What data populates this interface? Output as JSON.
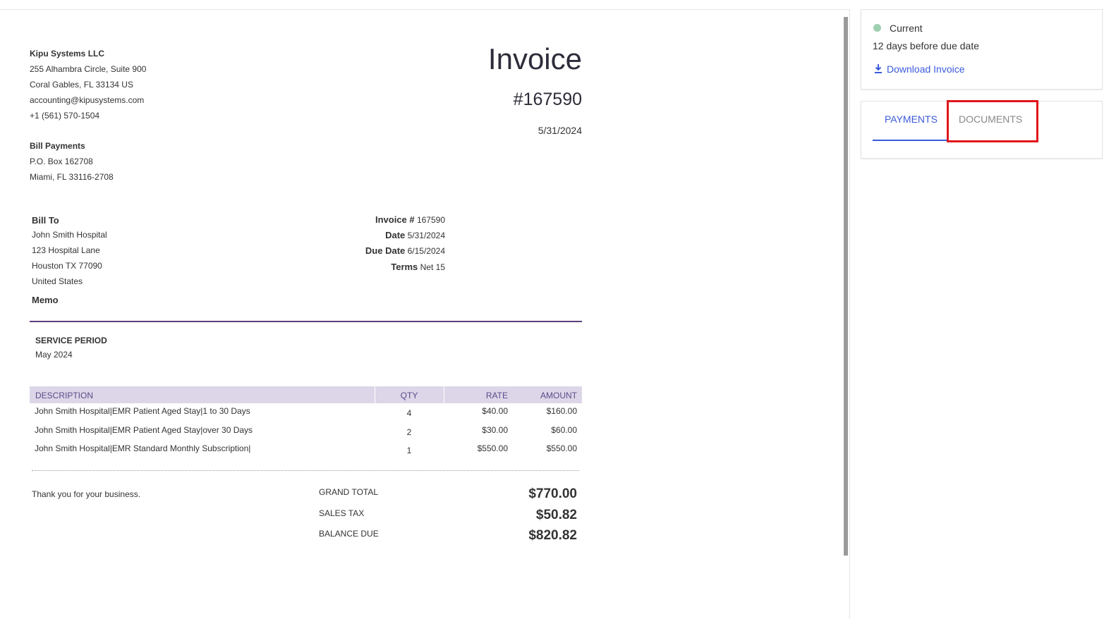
{
  "company": {
    "name": "Kipu Systems LLC",
    "lines": [
      "255 Alhambra Circle, Suite 900",
      "Coral Gables, FL 33134 US",
      "accounting@kipusystems.com",
      "+1 (561) 570-1504"
    ]
  },
  "remit": {
    "name": "Bill Payments",
    "lines": [
      "P.O. Box 162708",
      "Miami, FL 33116-2708"
    ]
  },
  "invoice": {
    "title": "Invoice",
    "number": "#167590",
    "date": "5/31/2024"
  },
  "bill_to": {
    "label": "Bill To",
    "lines": [
      "John Smith Hospital",
      "123 Hospital Lane",
      "Houston TX 77090",
      "United States"
    ]
  },
  "details": [
    {
      "label": "Invoice #",
      "value": "167590"
    },
    {
      "label": "Date",
      "value": "5/31/2024"
    },
    {
      "label": "Due Date",
      "value": "6/15/2024"
    },
    {
      "label": "Terms",
      "value": "Net 15"
    }
  ],
  "memo": "Memo",
  "service_period": {
    "label": "SERVICE PERIOD",
    "value": "May 2024"
  },
  "table": {
    "headers": [
      "DESCRIPTION",
      "QTY",
      "RATE",
      "AMOUNT"
    ],
    "rows": [
      [
        "John Smith Hospital|EMR Patient Aged Stay|1 to 30 Days",
        "4",
        "$40.00",
        "$160.00"
      ],
      [
        "John Smith Hospital|EMR Patient Aged Stay|over 30 Days",
        "2",
        "$30.00",
        "$60.00"
      ],
      [
        "John Smith Hospital|EMR Standard Monthly Subscription|",
        "1",
        "$550.00",
        "$550.00"
      ]
    ]
  },
  "footer": {
    "thanks": "Thank you for your business.",
    "totals": [
      {
        "label": "GRAND TOTAL",
        "value": "$770.00"
      },
      {
        "label": "SALES TAX",
        "value": "$50.82"
      },
      {
        "label": "BALANCE DUE",
        "value": "$820.82"
      }
    ]
  },
  "sidebar": {
    "status": "Current",
    "due_note": "12 days before due date",
    "download": "Download Invoice",
    "tabs": [
      "PAYMENTS",
      "DOCUMENTS"
    ]
  }
}
